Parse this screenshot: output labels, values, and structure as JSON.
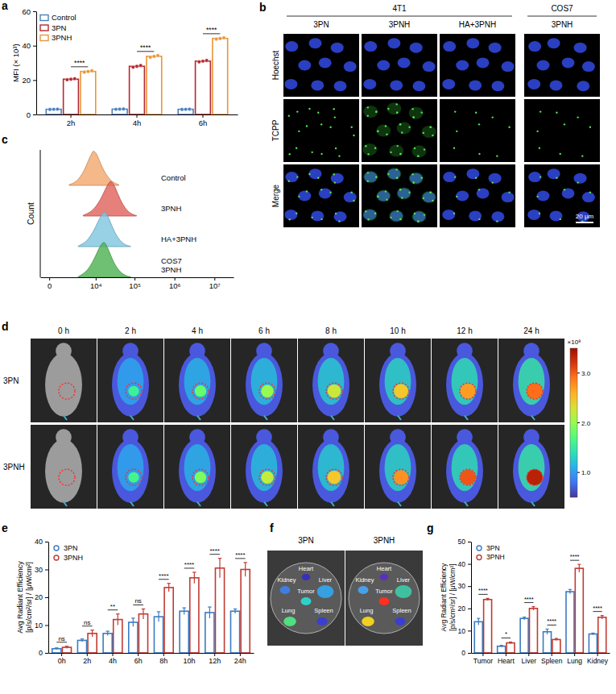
{
  "chart_data": [
    {
      "type": "bar",
      "panel_label": "a",
      "ylabel": "MFI (× 10³)",
      "categories": [
        "2h",
        "4h",
        "6h"
      ],
      "series": [
        {
          "name": "Control",
          "color": "#4a7fc1",
          "values": [
            3.0,
            3.1,
            3.0
          ],
          "points": [
            [
              2.9,
              3.0,
              3.1
            ],
            [
              3.0,
              3.1,
              3.2
            ],
            [
              2.9,
              3.0,
              3.1
            ]
          ]
        },
        {
          "name": "3PN",
          "color": "#b5282e",
          "values": [
            20.5,
            28.0,
            31.0
          ],
          "points": [
            [
              20.2,
              20.5,
              20.8
            ],
            [
              27.5,
              28.0,
              28.5
            ],
            [
              30.6,
              31.0,
              31.4
            ]
          ]
        },
        {
          "name": "3PNH",
          "color": "#e8963a",
          "values": [
            25.0,
            33.8,
            44.2
          ],
          "points": [
            [
              24.6,
              25.0,
              25.4
            ],
            [
              33.3,
              33.8,
              34.3
            ],
            [
              43.8,
              44.2,
              44.6
            ]
          ]
        }
      ],
      "annotations": [
        "****",
        "****",
        "****"
      ],
      "ylim": [
        0,
        60
      ],
      "yticks": [
        0,
        20,
        40,
        60
      ],
      "legend": "upper left",
      "marker": "square"
    },
    {
      "type": "ridgeline",
      "panel_label": "c",
      "ylabel": "Count",
      "log": "x",
      "xlim": [
        -500,
        30000000
      ],
      "xticks": [
        0,
        {
          "value": 10000,
          "label": "10⁴"
        },
        {
          "value": 100000,
          "label": "10⁵"
        },
        {
          "value": 1000000,
          "label": "10⁶"
        },
        {
          "value": 10000000,
          "label": "10⁷"
        }
      ],
      "ylim": [
        0,
        1
      ],
      "tick_labels": "x",
      "series": [
        {
          "name": "Control",
          "color": "#f2a66b",
          "x": [
            1600,
            2500,
            3500,
            5000,
            6300,
            7900,
            8900,
            11200,
            14100,
            20000,
            28200,
            39800
          ],
          "values": [
            0.02,
            0.08,
            0.2,
            0.45,
            0.7,
            0.92,
            1,
            0.85,
            0.55,
            0.25,
            0.08,
            0.02
          ]
        },
        {
          "name": "3PNH",
          "color": "#e0605a",
          "x": [
            4500,
            7100,
            10000,
            14100,
            17800,
            22400,
            25100,
            31600,
            39800,
            56200,
            79400,
            112000
          ],
          "values": [
            0.02,
            0.1,
            0.25,
            0.5,
            0.75,
            0.95,
            1,
            0.85,
            0.55,
            0.22,
            0.06,
            0.01
          ]
        },
        {
          "name": "HA+3PNH",
          "color": "#7ec4e0",
          "x": [
            3200,
            5000,
            7100,
            10000,
            12600,
            15800,
            17800,
            22400,
            28200,
            39800,
            56200,
            79400
          ],
          "values": [
            0.02,
            0.1,
            0.28,
            0.55,
            0.8,
            0.97,
            1,
            0.8,
            0.5,
            0.2,
            0.05,
            0.01
          ]
        },
        {
          "name": "COS7\n3PNH",
          "color": "#4cb050",
          "x": [
            3200,
            5000,
            7100,
            10000,
            12600,
            15800,
            17800,
            22400,
            28200,
            39800,
            56200,
            79400
          ],
          "values": [
            0.02,
            0.12,
            0.3,
            0.6,
            0.85,
            1,
            0.98,
            0.75,
            0.45,
            0.18,
            0.05,
            0.01
          ]
        }
      ]
    },
    {
      "type": "bar",
      "panel_label": "e",
      "ylabel": "Avg Radiant Efficiency\n[p/s/cm²/sr] / [μW/cm²]",
      "categories": [
        "0h",
        "2h",
        "4h",
        "6h",
        "8h",
        "10h",
        "12h",
        "24h"
      ],
      "series": [
        {
          "name": "3PN",
          "color": "#3b7bc4",
          "values": [
            1.5,
            4.5,
            7.0,
            11.0,
            13.0,
            15.0,
            14.5,
            15.0
          ],
          "errors": [
            0.3,
            0.5,
            0.8,
            1.5,
            1.8,
            1.2,
            2.0,
            0.8
          ]
        },
        {
          "name": "3PNH",
          "color": "#c23b32",
          "values": [
            2.0,
            7.0,
            12.0,
            14.0,
            23.5,
            27.0,
            30.5,
            30.0
          ],
          "errors": [
            0.4,
            1.2,
            2.0,
            1.8,
            1.5,
            2.0,
            3.5,
            2.5
          ]
        }
      ],
      "annotations": [
        "ns",
        "ns",
        "**",
        "ns",
        "****",
        "****",
        "****",
        "****"
      ],
      "ylim": [
        0,
        40
      ],
      "yticks": [
        0,
        10,
        20,
        30,
        40
      ],
      "legend": "upper left",
      "marker": "circle"
    },
    {
      "type": "bar",
      "panel_label": "g",
      "ylabel": "Avg Radiant Efficiency\n[p/s/cm²/sr] / [μW/cm²]",
      "categories": [
        "Tumor",
        "Heart",
        "Liver",
        "Spleen",
        "Lung",
        "Kidney"
      ],
      "series": [
        {
          "name": "3PN",
          "color": "#3b7bc4",
          "values": [
            14.0,
            3.0,
            15.5,
            9.5,
            27.5,
            8.5
          ],
          "errors": [
            1.5,
            0.4,
            0.6,
            1.2,
            1.0,
            0.4
          ]
        },
        {
          "name": "3PNH",
          "color": "#c23b32",
          "values": [
            24.0,
            4.5,
            20.0,
            6.0,
            38.0,
            16.0
          ],
          "errors": [
            0.5,
            0.4,
            0.8,
            0.5,
            1.8,
            0.8
          ]
        }
      ],
      "annotations": [
        "****",
        "*",
        "****",
        "****",
        "****",
        "****"
      ],
      "ylim": [
        0,
        50
      ],
      "yticks": [
        0,
        10,
        20,
        30,
        40,
        50
      ],
      "legend": "upper left",
      "marker": "circle"
    }
  ],
  "image_panels": {
    "b": {
      "panel_label": "b",
      "groups": [
        {
          "name": "4T1",
          "columns": [
            "3PN",
            "3PNH",
            "HA+3PNH"
          ]
        },
        {
          "name": "COS7",
          "columns": [
            "3PNH"
          ]
        }
      ],
      "rows": [
        "Hoechst",
        "TCPP",
        "Merge"
      ],
      "scale_bar": "20 μm"
    },
    "d": {
      "panel_label": "d",
      "columns": [
        "0 h",
        "2 h",
        "4 h",
        "6 h",
        "8 h",
        "10 h",
        "12 h",
        "24 h"
      ],
      "rows": [
        "3PN",
        "3PNH"
      ],
      "colorbar": {
        "range": [
          0.5,
          3.5
        ],
        "ticks": [
          {
            "value": 1,
            "label": "1.0"
          },
          {
            "value": 2,
            "label": "2.0"
          },
          {
            "value": 3,
            "label": "3.0"
          }
        ],
        "unit": "×10⁸"
      }
    },
    "f": {
      "panel_label": "f",
      "dishes": [
        "3PN",
        "3PNH"
      ],
      "organs": [
        "Heart",
        "Liver",
        "Kidney",
        "Tumor",
        "Lung",
        "Spleen"
      ]
    }
  }
}
